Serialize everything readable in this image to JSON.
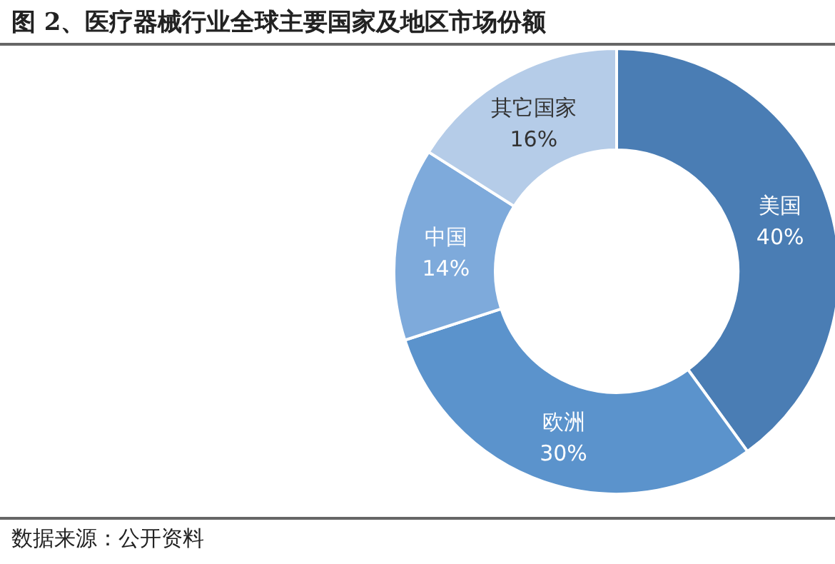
{
  "chart_data": {
    "type": "donut",
    "title": "图 2、医疗器械行业全球主要国家及地区市场份额",
    "categories": [
      "美国",
      "欧洲",
      "中国",
      "其它国家"
    ],
    "values": [
      40,
      30,
      14,
      16
    ],
    "colors": [
      "#4a7db4",
      "#5b93cc",
      "#7eaadb",
      "#b5cce8"
    ],
    "value_labels": [
      "40%",
      "30%",
      "14%",
      "16%"
    ],
    "annotations": [
      "数据来源：公开资料"
    ]
  }
}
